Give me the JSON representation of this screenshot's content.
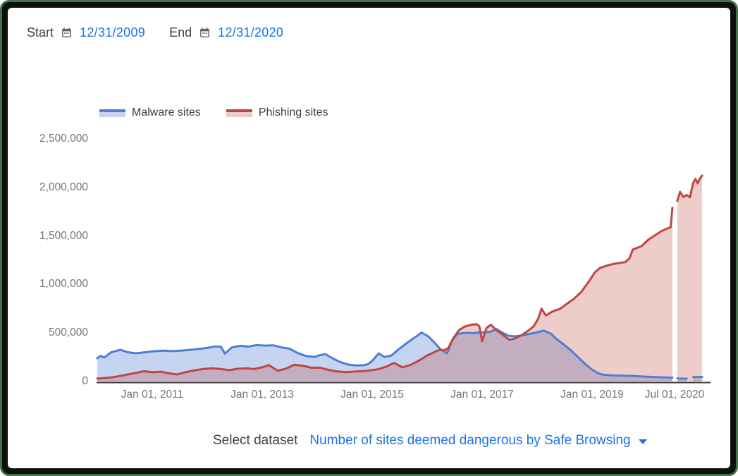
{
  "controls": {
    "start_label": "Start",
    "start_value": "12/31/2009",
    "end_label": "End",
    "end_value": "12/31/2020"
  },
  "footer": {
    "select_label": "Select dataset",
    "dataset_value": "Number of sites deemed dangerous by Safe Browsing"
  },
  "colors": {
    "link_blue": "#1a73e8",
    "malware_line": "#4e7fd4",
    "malware_fill": "#c4d5f1",
    "phishing_line": "#bf4741",
    "phishing_fill": "#edcbca",
    "axis_text": "#767676",
    "axis_line": "#3b3b3b",
    "frame_green": "#44714b"
  },
  "chart_data": {
    "type": "area",
    "title": "Number of sites deemed dangerous by Safe Browsing",
    "xlabel": "",
    "ylabel": "",
    "grid": false,
    "legend_position": "top-left",
    "x_range": [
      2010.0,
      2021.0
    ],
    "y_range": [
      0,
      2500000
    ],
    "y_ticks": [
      {
        "v": 0,
        "label": "0"
      },
      {
        "v": 500000,
        "label": "500,000"
      },
      {
        "v": 1000000,
        "label": "1,000,000"
      },
      {
        "v": 1500000,
        "label": "1,500,000"
      },
      {
        "v": 2000000,
        "label": "2,000,000"
      },
      {
        "v": 2500000,
        "label": "2,500,000"
      }
    ],
    "x_ticks": [
      {
        "t": 2011.0,
        "label": "Jan 01, 2011"
      },
      {
        "t": 2013.0,
        "label": "Jan 01, 2013"
      },
      {
        "t": 2015.0,
        "label": "Jan 01, 2015"
      },
      {
        "t": 2017.0,
        "label": "Jan 01, 2017"
      },
      {
        "t": 2019.0,
        "label": "Jan 01, 2019"
      },
      {
        "t": 2020.5,
        "label": "Jul 01, 2020"
      }
    ],
    "gaps": [
      {
        "from": 2020.46,
        "to": 2020.55
      }
    ],
    "series": [
      {
        "name": "Malware sites",
        "line_color": "#4e7fd4",
        "fill_color": "rgba(78,127,212,0.33)",
        "legend_fill": "#c4d5f1",
        "segments": [
          [
            [
              2010.0,
              240000
            ],
            [
              2010.06,
              263000
            ],
            [
              2010.13,
              247000
            ],
            [
              2010.25,
              300000
            ],
            [
              2010.42,
              327000
            ],
            [
              2010.55,
              302000
            ],
            [
              2010.7,
              291000
            ],
            [
              2010.85,
              300000
            ],
            [
              2011.0,
              311000
            ],
            [
              2011.2,
              318000
            ],
            [
              2011.4,
              313000
            ],
            [
              2011.6,
              322000
            ],
            [
              2011.8,
              332000
            ],
            [
              2012.0,
              347000
            ],
            [
              2012.15,
              362000
            ],
            [
              2012.25,
              358000
            ],
            [
              2012.32,
              288000
            ],
            [
              2012.45,
              352000
            ],
            [
              2012.6,
              368000
            ],
            [
              2012.75,
              360000
            ],
            [
              2012.9,
              375000
            ],
            [
              2013.05,
              370000
            ],
            [
              2013.2,
              373000
            ],
            [
              2013.35,
              352000
            ],
            [
              2013.5,
              338000
            ],
            [
              2013.65,
              292000
            ],
            [
              2013.8,
              262000
            ],
            [
              2013.95,
              252000
            ],
            [
              2014.05,
              272000
            ],
            [
              2014.15,
              283000
            ],
            [
              2014.25,
              248000
            ],
            [
              2014.4,
              205000
            ],
            [
              2014.55,
              176000
            ],
            [
              2014.7,
              166000
            ],
            [
              2014.85,
              168000
            ],
            [
              2014.93,
              180000
            ],
            [
              2015.0,
              212000
            ],
            [
              2015.12,
              290000
            ],
            [
              2015.22,
              252000
            ],
            [
              2015.35,
              268000
            ],
            [
              2015.5,
              340000
            ],
            [
              2015.65,
              405000
            ],
            [
              2015.78,
              455000
            ],
            [
              2015.9,
              505000
            ],
            [
              2016.02,
              465000
            ],
            [
              2016.12,
              408000
            ],
            [
              2016.25,
              330000
            ],
            [
              2016.36,
              290000
            ],
            [
              2016.46,
              430000
            ],
            [
              2016.55,
              490000
            ],
            [
              2016.65,
              498000
            ],
            [
              2016.75,
              502000
            ],
            [
              2016.85,
              498000
            ],
            [
              2016.95,
              505000
            ],
            [
              2017.05,
              508000
            ],
            [
              2017.15,
              512000
            ],
            [
              2017.26,
              540000
            ],
            [
              2017.36,
              505000
            ],
            [
              2017.48,
              472000
            ],
            [
              2017.6,
              465000
            ],
            [
              2017.75,
              478000
            ],
            [
              2017.9,
              495000
            ],
            [
              2018.02,
              510000
            ],
            [
              2018.12,
              525000
            ],
            [
              2018.25,
              492000
            ],
            [
              2018.35,
              440000
            ],
            [
              2018.5,
              375000
            ],
            [
              2018.62,
              318000
            ],
            [
              2018.75,
              248000
            ],
            [
              2018.88,
              178000
            ],
            [
              2019.0,
              122000
            ],
            [
              2019.1,
              88000
            ],
            [
              2019.2,
              70000
            ],
            [
              2019.35,
              63000
            ],
            [
              2019.55,
              60000
            ],
            [
              2019.75,
              56000
            ],
            [
              2019.95,
              51000
            ],
            [
              2020.15,
              46000
            ],
            [
              2020.35,
              42000
            ],
            [
              2020.46,
              40000
            ]
          ],
          [
            [
              2020.55,
              32000
            ],
            [
              2020.72,
              28000
            ]
          ],
          [
            [
              2020.84,
              45000
            ],
            [
              2021.0,
              47000
            ]
          ]
        ]
      },
      {
        "name": "Phishing sites",
        "line_color": "#bf4741",
        "fill_color": "rgba(191,71,65,0.28)",
        "legend_fill": "#edcbca",
        "segments": [
          [
            [
              2010.0,
              30000
            ],
            [
              2010.15,
              36000
            ],
            [
              2010.3,
              46000
            ],
            [
              2010.5,
              66000
            ],
            [
              2010.7,
              88000
            ],
            [
              2010.85,
              106000
            ],
            [
              2011.0,
              95000
            ],
            [
              2011.15,
              101000
            ],
            [
              2011.3,
              86000
            ],
            [
              2011.45,
              72000
            ],
            [
              2011.6,
              96000
            ],
            [
              2011.78,
              116000
            ],
            [
              2011.95,
              130000
            ],
            [
              2012.1,
              136000
            ],
            [
              2012.25,
              128000
            ],
            [
              2012.4,
              117000
            ],
            [
              2012.55,
              131000
            ],
            [
              2012.7,
              136000
            ],
            [
              2012.85,
              128000
            ],
            [
              2013.0,
              146000
            ],
            [
              2013.12,
              169000
            ],
            [
              2013.28,
              112000
            ],
            [
              2013.42,
              130000
            ],
            [
              2013.58,
              172000
            ],
            [
              2013.75,
              161000
            ],
            [
              2013.9,
              142000
            ],
            [
              2014.05,
              143000
            ],
            [
              2014.2,
              121000
            ],
            [
              2014.35,
              105000
            ],
            [
              2014.52,
              97000
            ],
            [
              2014.7,
              103000
            ],
            [
              2014.9,
              110000
            ],
            [
              2015.1,
              126000
            ],
            [
              2015.25,
              152000
            ],
            [
              2015.4,
              192000
            ],
            [
              2015.55,
              145000
            ],
            [
              2015.7,
              172000
            ],
            [
              2015.85,
              215000
            ],
            [
              2016.0,
              268000
            ],
            [
              2016.12,
              300000
            ],
            [
              2016.22,
              325000
            ],
            [
              2016.3,
              322000
            ],
            [
              2016.38,
              340000
            ],
            [
              2016.48,
              450000
            ],
            [
              2016.58,
              530000
            ],
            [
              2016.68,
              565000
            ],
            [
              2016.8,
              585000
            ],
            [
              2016.9,
              590000
            ],
            [
              2016.95,
              568000
            ],
            [
              2017.0,
              415000
            ],
            [
              2017.08,
              552000
            ],
            [
              2017.16,
              585000
            ],
            [
              2017.24,
              540000
            ],
            [
              2017.32,
              505000
            ],
            [
              2017.42,
              462000
            ],
            [
              2017.5,
              428000
            ],
            [
              2017.6,
              445000
            ],
            [
              2017.72,
              478000
            ],
            [
              2017.84,
              525000
            ],
            [
              2017.94,
              570000
            ],
            [
              2018.02,
              648000
            ],
            [
              2018.08,
              750000
            ],
            [
              2018.16,
              680000
            ],
            [
              2018.28,
              722000
            ],
            [
              2018.42,
              750000
            ],
            [
              2018.54,
              800000
            ],
            [
              2018.66,
              848000
            ],
            [
              2018.8,
              920000
            ],
            [
              2018.94,
              1030000
            ],
            [
              2019.05,
              1125000
            ],
            [
              2019.15,
              1172000
            ],
            [
              2019.3,
              1200000
            ],
            [
              2019.45,
              1218000
            ],
            [
              2019.6,
              1230000
            ],
            [
              2019.68,
              1268000
            ],
            [
              2019.74,
              1360000
            ],
            [
              2019.9,
              1395000
            ],
            [
              2020.02,
              1460000
            ],
            [
              2020.14,
              1505000
            ],
            [
              2020.26,
              1550000
            ],
            [
              2020.36,
              1575000
            ],
            [
              2020.43,
              1590000
            ],
            [
              2020.46,
              1790000
            ]
          ],
          [
            [
              2020.55,
              1862000
            ],
            [
              2020.6,
              1955000
            ],
            [
              2020.66,
              1902000
            ],
            [
              2020.72,
              1922000
            ],
            [
              2020.78,
              1898000
            ],
            [
              2020.84,
              2048000
            ],
            [
              2020.88,
              2088000
            ],
            [
              2020.92,
              2042000
            ],
            [
              2020.96,
              2092000
            ],
            [
              2021.0,
              2122000
            ]
          ]
        ]
      }
    ]
  }
}
